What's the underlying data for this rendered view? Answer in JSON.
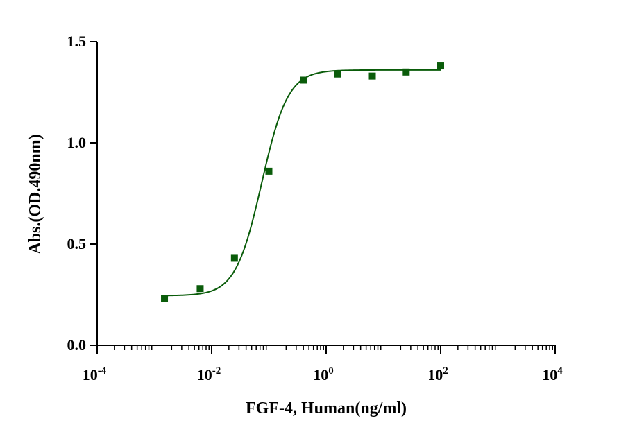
{
  "chart_data": {
    "type": "scatter",
    "title": "",
    "xlabel": "FGF-4, Human(ng/ml)",
    "ylabel": "Abs.(OD.490nm)",
    "x_scale": "log10",
    "xlim": [
      0.0001,
      10000
    ],
    "ylim": [
      0,
      1.5
    ],
    "x_ticks": [
      {
        "value": 0.0001,
        "base": "10",
        "exp": "-4"
      },
      {
        "value": 0.01,
        "base": "10",
        "exp": "-2"
      },
      {
        "value": 1,
        "base": "10",
        "exp": "0"
      },
      {
        "value": 100,
        "base": "10",
        "exp": "2"
      },
      {
        "value": 10000,
        "base": "10",
        "exp": "4"
      }
    ],
    "y_ticks": [
      "0.0",
      "0.5",
      "1.0",
      "1.5"
    ],
    "grid": false,
    "legend": "none",
    "color": "#0a5c0a",
    "series": [
      {
        "x": [
          0.0015,
          0.0063,
          0.025,
          0.1,
          0.4,
          1.6,
          6.4,
          25,
          100
        ],
        "y": [
          0.23,
          0.28,
          0.43,
          0.86,
          1.31,
          1.34,
          1.33,
          1.35,
          1.38
        ]
      }
    ],
    "fit_curve": {
      "model": "4PL",
      "bottom": 0.245,
      "top": 1.36,
      "ec50": 0.075,
      "hill": 1.9,
      "x_range": [
        0.0015,
        100
      ]
    }
  }
}
